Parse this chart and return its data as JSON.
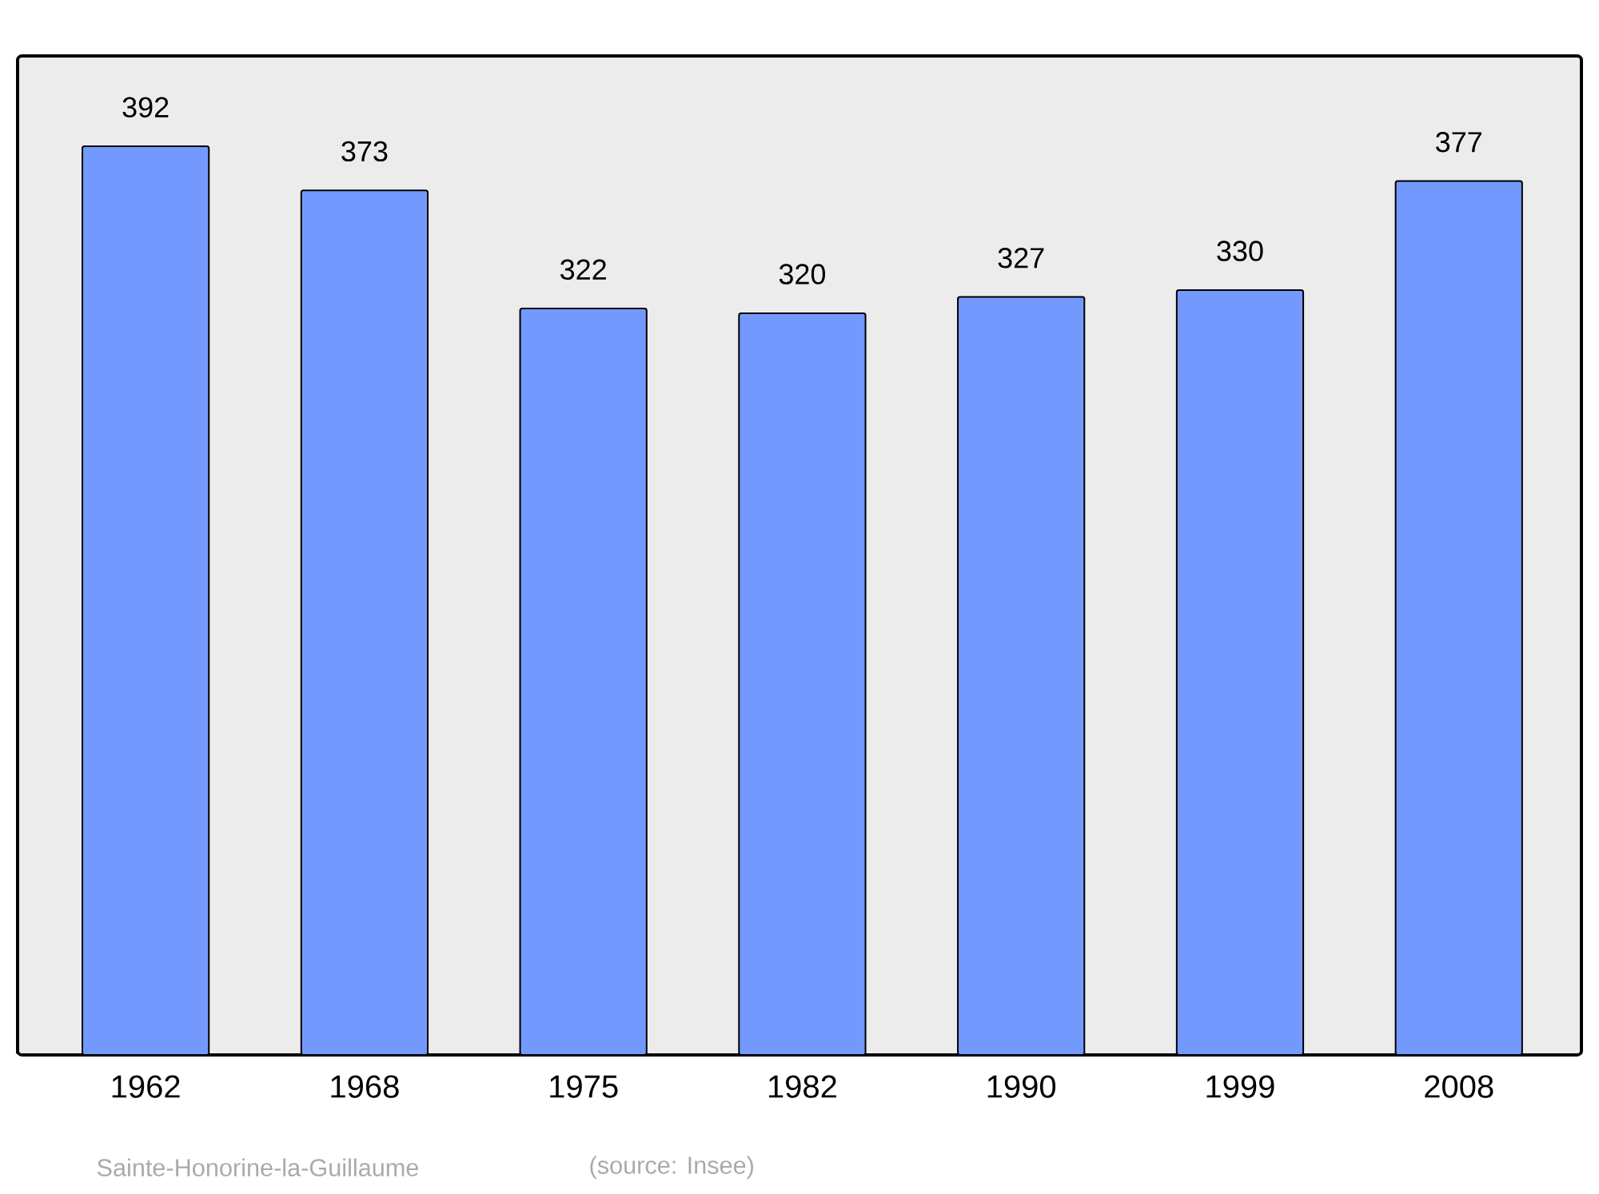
{
  "chart_data": {
    "type": "bar",
    "categories": [
      "1962",
      "1968",
      "1975",
      "1982",
      "1990",
      "1999",
      "2008"
    ],
    "values": [
      392,
      373,
      322,
      320,
      327,
      330,
      377
    ],
    "color": "#7399ff",
    "ylim": [
      0,
      431
    ],
    "data_labels": true,
    "annotations": [
      "Sainte-Honorine-la-Guillaume",
      "(source: Insee)"
    ]
  }
}
